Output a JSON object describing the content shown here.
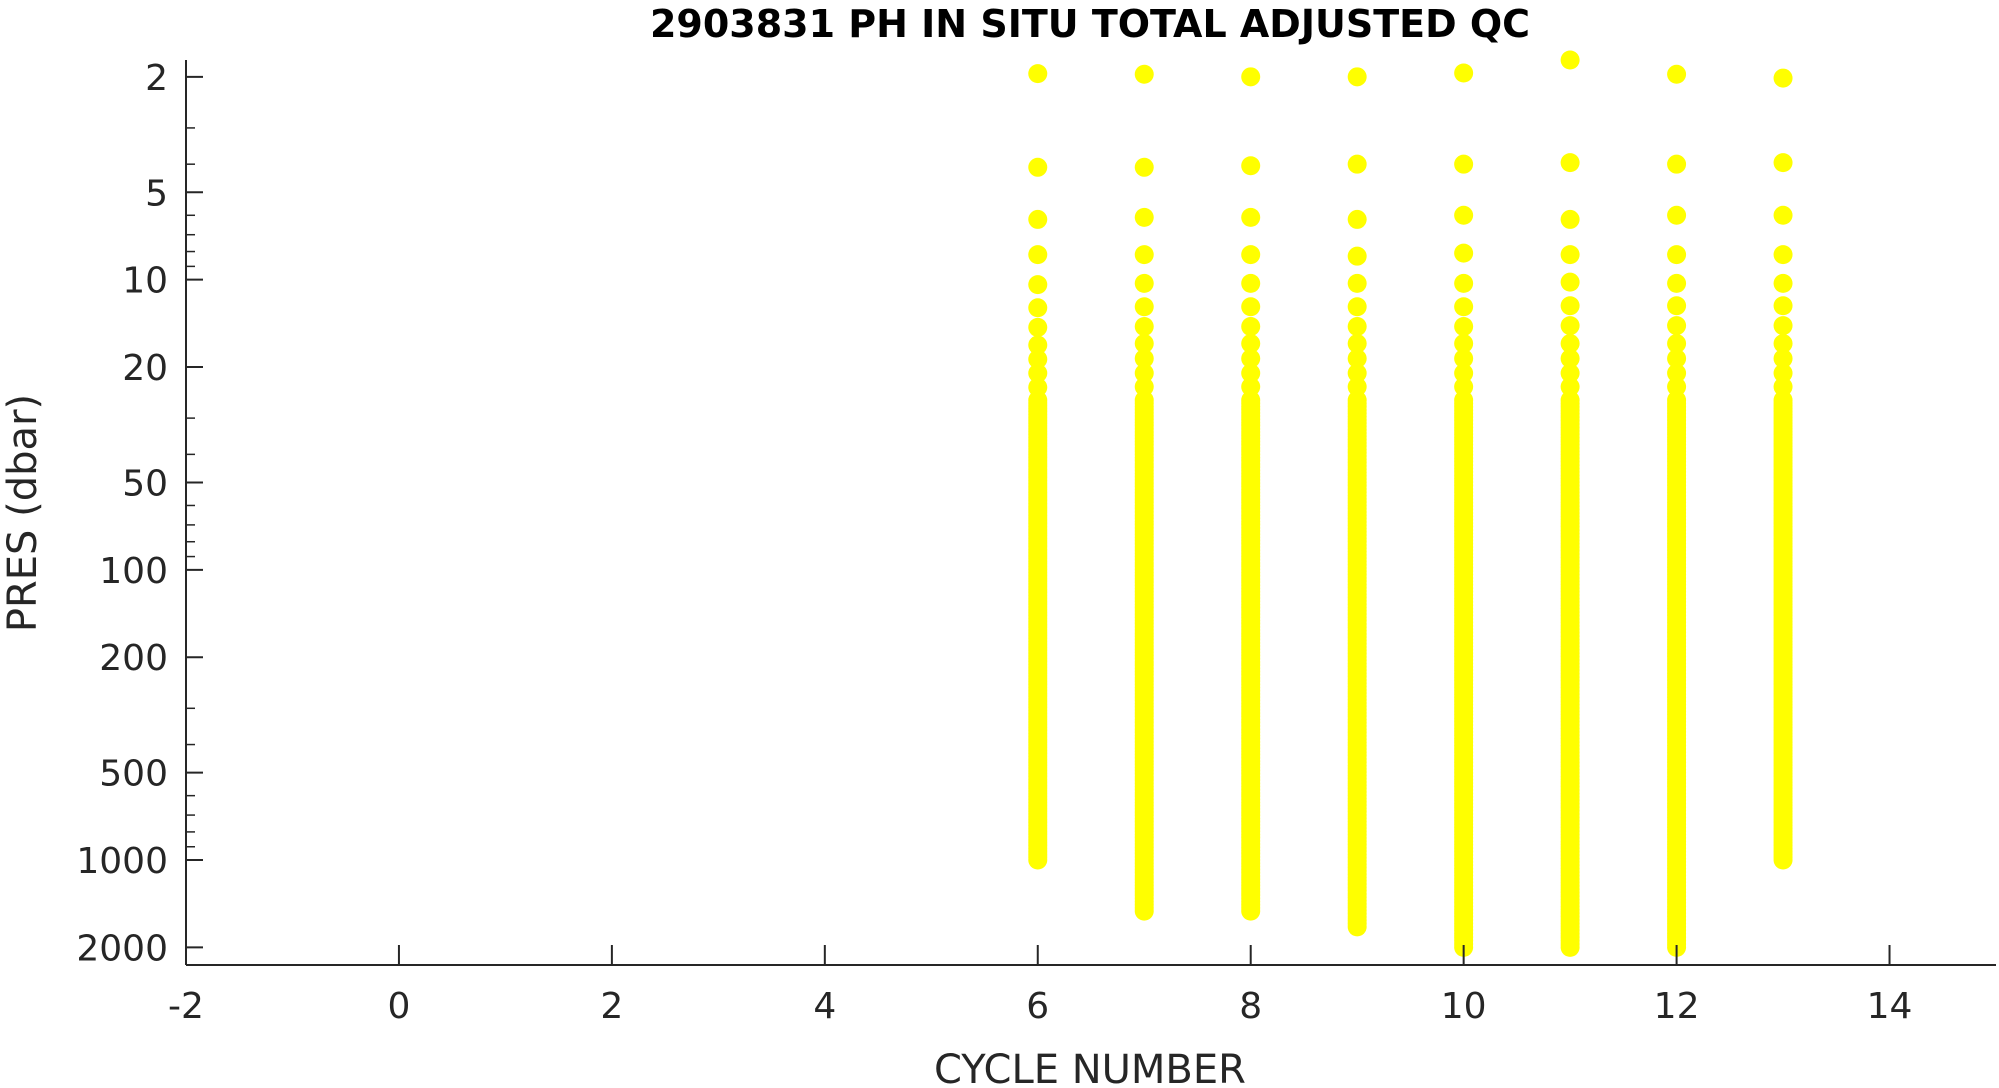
{
  "chart_data": {
    "type": "scatter",
    "title": "2903831  PH IN SITU TOTAL ADJUSTED QC",
    "xlabel": "CYCLE NUMBER",
    "ylabel": "PRES (dbar)",
    "xlim": [
      -2,
      15
    ],
    "ylim": [
      1.75,
      2300
    ],
    "y_scale": "log",
    "y_reversed": true,
    "grid": false,
    "legend": "none",
    "marker_color": "#FFFF00",
    "x_ticks": [
      -2,
      0,
      2,
      4,
      6,
      8,
      10,
      12,
      14
    ],
    "x_tick_labels": [
      "-2",
      "0",
      "2",
      "4",
      "6",
      "8",
      "10",
      "12",
      "14"
    ],
    "y_ticks": [
      2,
      5,
      10,
      20,
      50,
      100,
      200,
      500,
      1000,
      2000
    ],
    "y_tick_labels": [
      "2",
      "5",
      "10",
      "20",
      "50",
      "100",
      "200",
      "500",
      "1000",
      "2000"
    ],
    "y_minor_ticks": [
      3,
      4,
      6,
      7,
      8,
      9,
      30,
      40,
      60,
      70,
      80,
      90,
      300,
      400,
      600,
      700,
      800,
      900
    ],
    "profiles": [
      {
        "cycle": 6,
        "shallow": [
          1.95,
          4.1,
          6.2,
          8.2,
          10.4,
          12.5,
          14.6,
          16.8,
          18.8,
          21,
          23.5,
          26
        ],
        "max_pres": 1000
      },
      {
        "cycle": 7,
        "shallow": [
          1.96,
          4.1,
          6.1,
          8.2,
          10.3,
          12.4,
          14.5,
          16.6,
          18.7,
          21,
          23.4,
          26
        ],
        "max_pres": 1500
      },
      {
        "cycle": 8,
        "shallow": [
          2.0,
          4.05,
          6.1,
          8.2,
          10.3,
          12.4,
          14.5,
          16.6,
          18.7,
          21,
          23.4,
          26
        ],
        "max_pres": 1500
      },
      {
        "cycle": 9,
        "shallow": [
          2.0,
          4.0,
          6.2,
          8.3,
          10.3,
          12.4,
          14.5,
          16.6,
          18.7,
          21,
          23.4,
          26
        ],
        "max_pres": 1700
      },
      {
        "cycle": 10,
        "shallow": [
          1.94,
          4.0,
          6.0,
          8.1,
          10.3,
          12.4,
          14.5,
          16.6,
          18.7,
          21,
          23.4,
          26
        ],
        "max_pres": 2000
      },
      {
        "cycle": 11,
        "shallow": [
          1.75,
          3.95,
          6.2,
          8.2,
          10.2,
          12.3,
          14.4,
          16.6,
          18.7,
          21,
          23.4,
          26
        ],
        "max_pres": 2000
      },
      {
        "cycle": 12,
        "shallow": [
          1.96,
          4.0,
          6.0,
          8.2,
          10.3,
          12.3,
          14.4,
          16.6,
          18.7,
          21,
          23.4,
          26
        ],
        "max_pres": 2000
      },
      {
        "cycle": 13,
        "shallow": [
          2.02,
          3.95,
          6.0,
          8.2,
          10.3,
          12.3,
          14.4,
          16.6,
          18.7,
          21,
          23.4,
          26
        ],
        "max_pres": 1000
      }
    ]
  }
}
